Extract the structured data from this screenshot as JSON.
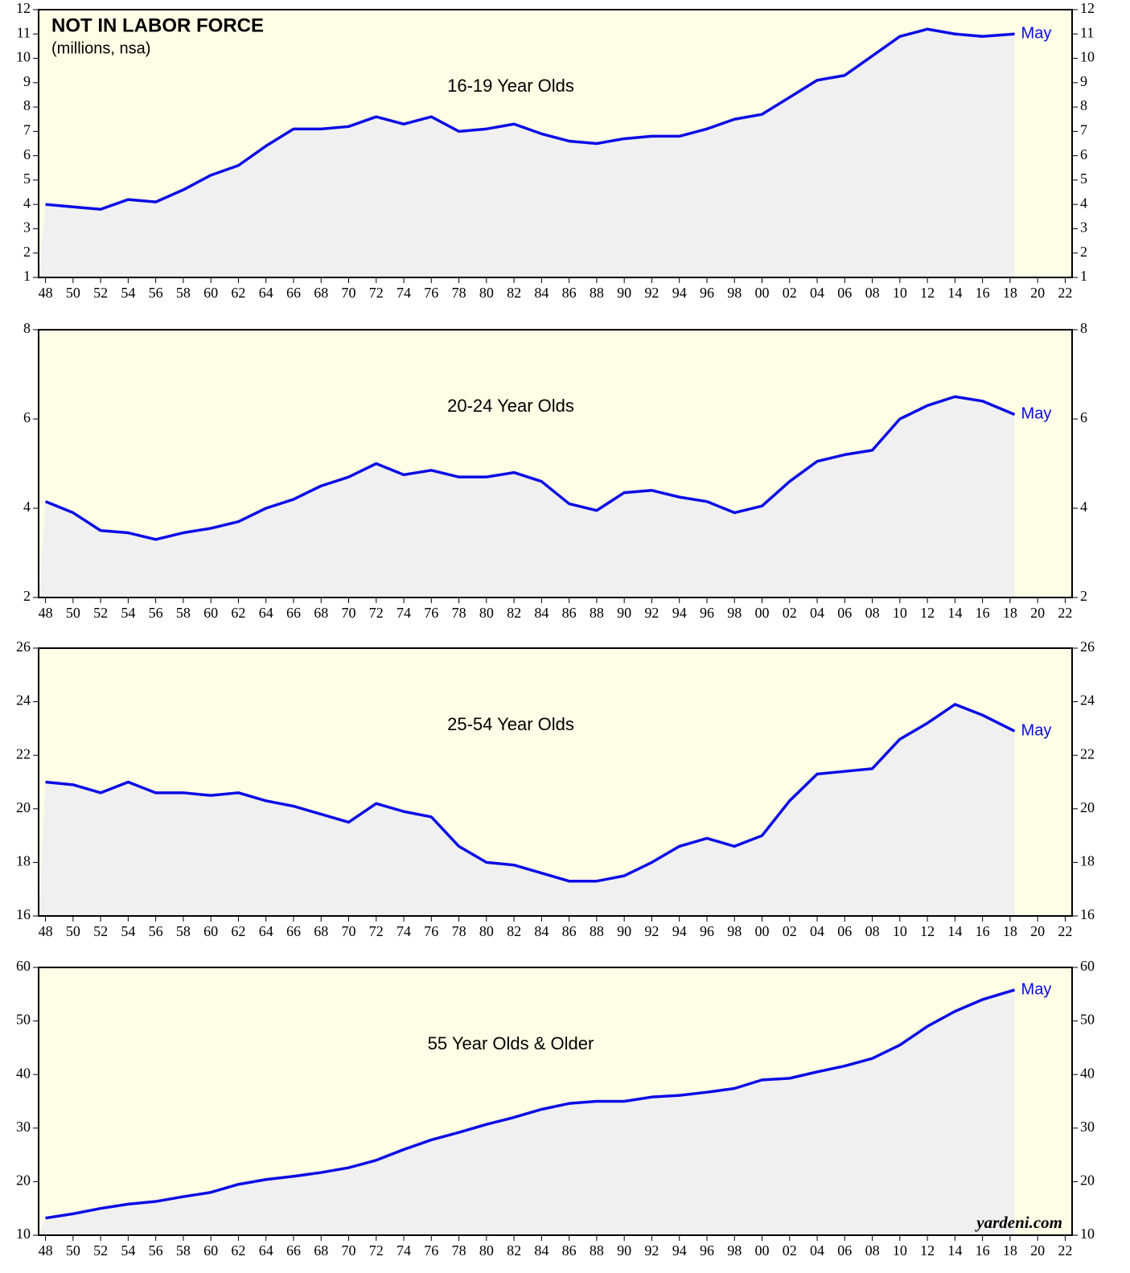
{
  "chart_data": [
    {
      "type": "line",
      "title": "NOT IN LABOR FORCE",
      "subtitle": "(millions, nsa)",
      "label": "16-19 Year Olds",
      "annotation": "May",
      "x": [
        1948,
        1950,
        1952,
        1954,
        1956,
        1958,
        1960,
        1962,
        1964,
        1966,
        1968,
        1970,
        1972,
        1974,
        1976,
        1978,
        1980,
        1982,
        1984,
        1986,
        1988,
        1990,
        1992,
        1994,
        1996,
        1998,
        2000,
        2002,
        2004,
        2006,
        2008,
        2010,
        2012,
        2014,
        2016,
        2018.33
      ],
      "values": [
        4.0,
        3.9,
        3.8,
        4.2,
        4.1,
        4.6,
        5.2,
        5.6,
        6.4,
        7.1,
        7.1,
        7.2,
        7.6,
        7.3,
        7.6,
        7.0,
        7.1,
        7.3,
        6.9,
        6.6,
        6.5,
        6.7,
        6.8,
        6.8,
        7.1,
        7.5,
        7.7,
        8.4,
        9.1,
        9.3,
        10.1,
        10.9,
        11.2,
        11.0,
        10.9,
        11.0
      ],
      "color": "#0a0ae6",
      "xlim": [
        1947.5,
        2022.5
      ],
      "ylim": [
        1,
        12
      ],
      "yticks": [
        1,
        2,
        3,
        4,
        5,
        6,
        7,
        8,
        9,
        10,
        11,
        12
      ],
      "xticks": [
        {
          "value": 1948,
          "label": "48"
        },
        {
          "value": 1950,
          "label": "50"
        },
        {
          "value": 1952,
          "label": "52"
        },
        {
          "value": 1954,
          "label": "54"
        },
        {
          "value": 1956,
          "label": "56"
        },
        {
          "value": 1958,
          "label": "58"
        },
        {
          "value": 1960,
          "label": "60"
        },
        {
          "value": 1962,
          "label": "62"
        },
        {
          "value": 1964,
          "label": "64"
        },
        {
          "value": 1966,
          "label": "66"
        },
        {
          "value": 1968,
          "label": "68"
        },
        {
          "value": 1970,
          "label": "70"
        },
        {
          "value": 1972,
          "label": "72"
        },
        {
          "value": 1974,
          "label": "74"
        },
        {
          "value": 1976,
          "label": "76"
        },
        {
          "value": 1978,
          "label": "78"
        },
        {
          "value": 1980,
          "label": "80"
        },
        {
          "value": 1982,
          "label": "82"
        },
        {
          "value": 1984,
          "label": "84"
        },
        {
          "value": 1986,
          "label": "86"
        },
        {
          "value": 1988,
          "label": "88"
        },
        {
          "value": 1990,
          "label": "90"
        },
        {
          "value": 1992,
          "label": "92"
        },
        {
          "value": 1994,
          "label": "94"
        },
        {
          "value": 1996,
          "label": "96"
        },
        {
          "value": 1998,
          "label": "98"
        },
        {
          "value": 2000,
          "label": "00"
        },
        {
          "value": 2002,
          "label": "02"
        },
        {
          "value": 2004,
          "label": "04"
        },
        {
          "value": 2006,
          "label": "06"
        },
        {
          "value": 2008,
          "label": "08"
        },
        {
          "value": 2010,
          "label": "10"
        },
        {
          "value": 2012,
          "label": "12"
        },
        {
          "value": 2014,
          "label": "14"
        },
        {
          "value": 2016,
          "label": "16"
        },
        {
          "value": 2018,
          "label": "18"
        },
        {
          "value": 2020,
          "label": "20"
        },
        {
          "value": 2022,
          "label": "22"
        }
      ]
    },
    {
      "type": "line",
      "label": "20-24 Year Olds",
      "annotation": "May",
      "x": [
        1948,
        1950,
        1952,
        1954,
        1956,
        1958,
        1960,
        1962,
        1964,
        1966,
        1968,
        1970,
        1972,
        1974,
        1976,
        1978,
        1980,
        1982,
        1984,
        1986,
        1988,
        1990,
        1992,
        1994,
        1996,
        1998,
        2000,
        2002,
        2004,
        2006,
        2008,
        2010,
        2012,
        2014,
        2016,
        2018.33
      ],
      "values": [
        4.15,
        3.9,
        3.5,
        3.45,
        3.3,
        3.45,
        3.55,
        3.7,
        4.0,
        4.2,
        4.5,
        4.7,
        5.0,
        4.75,
        4.85,
        4.7,
        4.7,
        4.8,
        4.6,
        4.1,
        3.95,
        4.35,
        4.4,
        4.25,
        4.15,
        3.9,
        4.05,
        4.6,
        5.05,
        5.2,
        5.3,
        6.0,
        6.3,
        6.5,
        6.4,
        6.1
      ],
      "color": "#0a0ae6",
      "xlim": [
        1947.5,
        2022.5
      ],
      "ylim": [
        2,
        8
      ],
      "yticks": [
        2,
        4,
        6,
        8
      ],
      "xticks": [
        {
          "value": 1948,
          "label": "48"
        },
        {
          "value": 1950,
          "label": "50"
        },
        {
          "value": 1952,
          "label": "52"
        },
        {
          "value": 1954,
          "label": "54"
        },
        {
          "value": 1956,
          "label": "56"
        },
        {
          "value": 1958,
          "label": "58"
        },
        {
          "value": 1960,
          "label": "60"
        },
        {
          "value": 1962,
          "label": "62"
        },
        {
          "value": 1964,
          "label": "64"
        },
        {
          "value": 1966,
          "label": "66"
        },
        {
          "value": 1968,
          "label": "68"
        },
        {
          "value": 1970,
          "label": "70"
        },
        {
          "value": 1972,
          "label": "72"
        },
        {
          "value": 1974,
          "label": "74"
        },
        {
          "value": 1976,
          "label": "76"
        },
        {
          "value": 1978,
          "label": "78"
        },
        {
          "value": 1980,
          "label": "80"
        },
        {
          "value": 1982,
          "label": "82"
        },
        {
          "value": 1984,
          "label": "84"
        },
        {
          "value": 1986,
          "label": "86"
        },
        {
          "value": 1988,
          "label": "88"
        },
        {
          "value": 1990,
          "label": "90"
        },
        {
          "value": 1992,
          "label": "92"
        },
        {
          "value": 1994,
          "label": "94"
        },
        {
          "value": 1996,
          "label": "96"
        },
        {
          "value": 1998,
          "label": "98"
        },
        {
          "value": 2000,
          "label": "00"
        },
        {
          "value": 2002,
          "label": "02"
        },
        {
          "value": 2004,
          "label": "04"
        },
        {
          "value": 2006,
          "label": "06"
        },
        {
          "value": 2008,
          "label": "08"
        },
        {
          "value": 2010,
          "label": "10"
        },
        {
          "value": 2012,
          "label": "12"
        },
        {
          "value": 2014,
          "label": "14"
        },
        {
          "value": 2016,
          "label": "16"
        },
        {
          "value": 2018,
          "label": "18"
        },
        {
          "value": 2020,
          "label": "20"
        },
        {
          "value": 2022,
          "label": "22"
        }
      ]
    },
    {
      "type": "line",
      "label": "25-54 Year Olds",
      "annotation": "May",
      "x": [
        1948,
        1950,
        1952,
        1954,
        1956,
        1958,
        1960,
        1962,
        1964,
        1966,
        1968,
        1970,
        1972,
        1974,
        1976,
        1978,
        1980,
        1982,
        1984,
        1986,
        1988,
        1990,
        1992,
        1994,
        1996,
        1998,
        2000,
        2002,
        2004,
        2006,
        2008,
        2010,
        2012,
        2014,
        2016,
        2018.33
      ],
      "values": [
        21.0,
        20.9,
        20.6,
        21.0,
        20.6,
        20.6,
        20.5,
        20.6,
        20.3,
        20.1,
        19.8,
        19.5,
        20.2,
        19.9,
        19.7,
        18.6,
        18.0,
        17.9,
        17.6,
        17.3,
        17.3,
        17.5,
        18.0,
        18.6,
        18.9,
        18.6,
        19.0,
        20.3,
        21.3,
        21.4,
        21.5,
        22.6,
        23.2,
        23.9,
        23.5,
        22.9
      ],
      "color": "#0a0ae6",
      "xlim": [
        1947.5,
        2022.5
      ],
      "ylim": [
        16,
        26
      ],
      "yticks": [
        16,
        18,
        20,
        22,
        24,
        26
      ],
      "xticks": [
        {
          "value": 1948,
          "label": "48"
        },
        {
          "value": 1950,
          "label": "50"
        },
        {
          "value": 1952,
          "label": "52"
        },
        {
          "value": 1954,
          "label": "54"
        },
        {
          "value": 1956,
          "label": "56"
        },
        {
          "value": 1958,
          "label": "58"
        },
        {
          "value": 1960,
          "label": "60"
        },
        {
          "value": 1962,
          "label": "62"
        },
        {
          "value": 1964,
          "label": "64"
        },
        {
          "value": 1966,
          "label": "66"
        },
        {
          "value": 1968,
          "label": "68"
        },
        {
          "value": 1970,
          "label": "70"
        },
        {
          "value": 1972,
          "label": "72"
        },
        {
          "value": 1974,
          "label": "74"
        },
        {
          "value": 1976,
          "label": "76"
        },
        {
          "value": 1978,
          "label": "78"
        },
        {
          "value": 1980,
          "label": "80"
        },
        {
          "value": 1982,
          "label": "82"
        },
        {
          "value": 1984,
          "label": "84"
        },
        {
          "value": 1986,
          "label": "86"
        },
        {
          "value": 1988,
          "label": "88"
        },
        {
          "value": 1990,
          "label": "90"
        },
        {
          "value": 1992,
          "label": "92"
        },
        {
          "value": 1994,
          "label": "94"
        },
        {
          "value": 1996,
          "label": "96"
        },
        {
          "value": 1998,
          "label": "98"
        },
        {
          "value": 2000,
          "label": "00"
        },
        {
          "value": 2002,
          "label": "02"
        },
        {
          "value": 2004,
          "label": "04"
        },
        {
          "value": 2006,
          "label": "06"
        },
        {
          "value": 2008,
          "label": "08"
        },
        {
          "value": 2010,
          "label": "10"
        },
        {
          "value": 2012,
          "label": "12"
        },
        {
          "value": 2014,
          "label": "14"
        },
        {
          "value": 2016,
          "label": "16"
        },
        {
          "value": 2018,
          "label": "18"
        },
        {
          "value": 2020,
          "label": "20"
        },
        {
          "value": 2022,
          "label": "22"
        }
      ]
    },
    {
      "type": "line",
      "label": "55 Year Olds & Older",
      "annotation": "May",
      "source": "yardeni.com",
      "x": [
        1948,
        1950,
        1952,
        1954,
        1956,
        1958,
        1960,
        1962,
        1964,
        1966,
        1968,
        1970,
        1972,
        1974,
        1976,
        1978,
        1980,
        1982,
        1984,
        1986,
        1988,
        1990,
        1992,
        1994,
        1996,
        1998,
        2000,
        2002,
        2004,
        2006,
        2008,
        2010,
        2012,
        2014,
        2016,
        2018.33
      ],
      "values": [
        13.2,
        14.0,
        15.0,
        15.8,
        16.3,
        17.2,
        18.0,
        19.5,
        20.4,
        21.0,
        21.7,
        22.6,
        24.0,
        26.0,
        27.8,
        29.2,
        30.7,
        32.0,
        33.5,
        34.6,
        35.0,
        35.0,
        35.8,
        36.1,
        36.7,
        37.4,
        39.0,
        39.3,
        40.5,
        41.6,
        43.0,
        45.5,
        49.0,
        51.8,
        54.0,
        55.8
      ],
      "color": "#0a0ae6",
      "xlim": [
        1947.5,
        2022.5
      ],
      "ylim": [
        10,
        60
      ],
      "yticks": [
        10,
        20,
        30,
        40,
        50,
        60
      ],
      "xticks": [
        {
          "value": 1948,
          "label": "48"
        },
        {
          "value": 1950,
          "label": "50"
        },
        {
          "value": 1952,
          "label": "52"
        },
        {
          "value": 1954,
          "label": "54"
        },
        {
          "value": 1956,
          "label": "56"
        },
        {
          "value": 1958,
          "label": "58"
        },
        {
          "value": 1960,
          "label": "60"
        },
        {
          "value": 1962,
          "label": "62"
        },
        {
          "value": 1964,
          "label": "64"
        },
        {
          "value": 1966,
          "label": "66"
        },
        {
          "value": 1968,
          "label": "68"
        },
        {
          "value": 1970,
          "label": "70"
        },
        {
          "value": 1972,
          "label": "72"
        },
        {
          "value": 1974,
          "label": "74"
        },
        {
          "value": 1976,
          "label": "76"
        },
        {
          "value": 1978,
          "label": "78"
        },
        {
          "value": 1980,
          "label": "80"
        },
        {
          "value": 1982,
          "label": "82"
        },
        {
          "value": 1984,
          "label": "84"
        },
        {
          "value": 1986,
          "label": "86"
        },
        {
          "value": 1988,
          "label": "88"
        },
        {
          "value": 1990,
          "label": "90"
        },
        {
          "value": 1992,
          "label": "92"
        },
        {
          "value": 1994,
          "label": "94"
        },
        {
          "value": 1996,
          "label": "96"
        },
        {
          "value": 1998,
          "label": "98"
        },
        {
          "value": 2000,
          "label": "00"
        },
        {
          "value": 2002,
          "label": "02"
        },
        {
          "value": 2004,
          "label": "04"
        },
        {
          "value": 2006,
          "label": "06"
        },
        {
          "value": 2008,
          "label": "08"
        },
        {
          "value": 2010,
          "label": "10"
        },
        {
          "value": 2012,
          "label": "12"
        },
        {
          "value": 2014,
          "label": "14"
        },
        {
          "value": 2016,
          "label": "16"
        },
        {
          "value": 2018,
          "label": "18"
        },
        {
          "value": 2020,
          "label": "20"
        },
        {
          "value": 2022,
          "label": "22"
        }
      ]
    }
  ]
}
